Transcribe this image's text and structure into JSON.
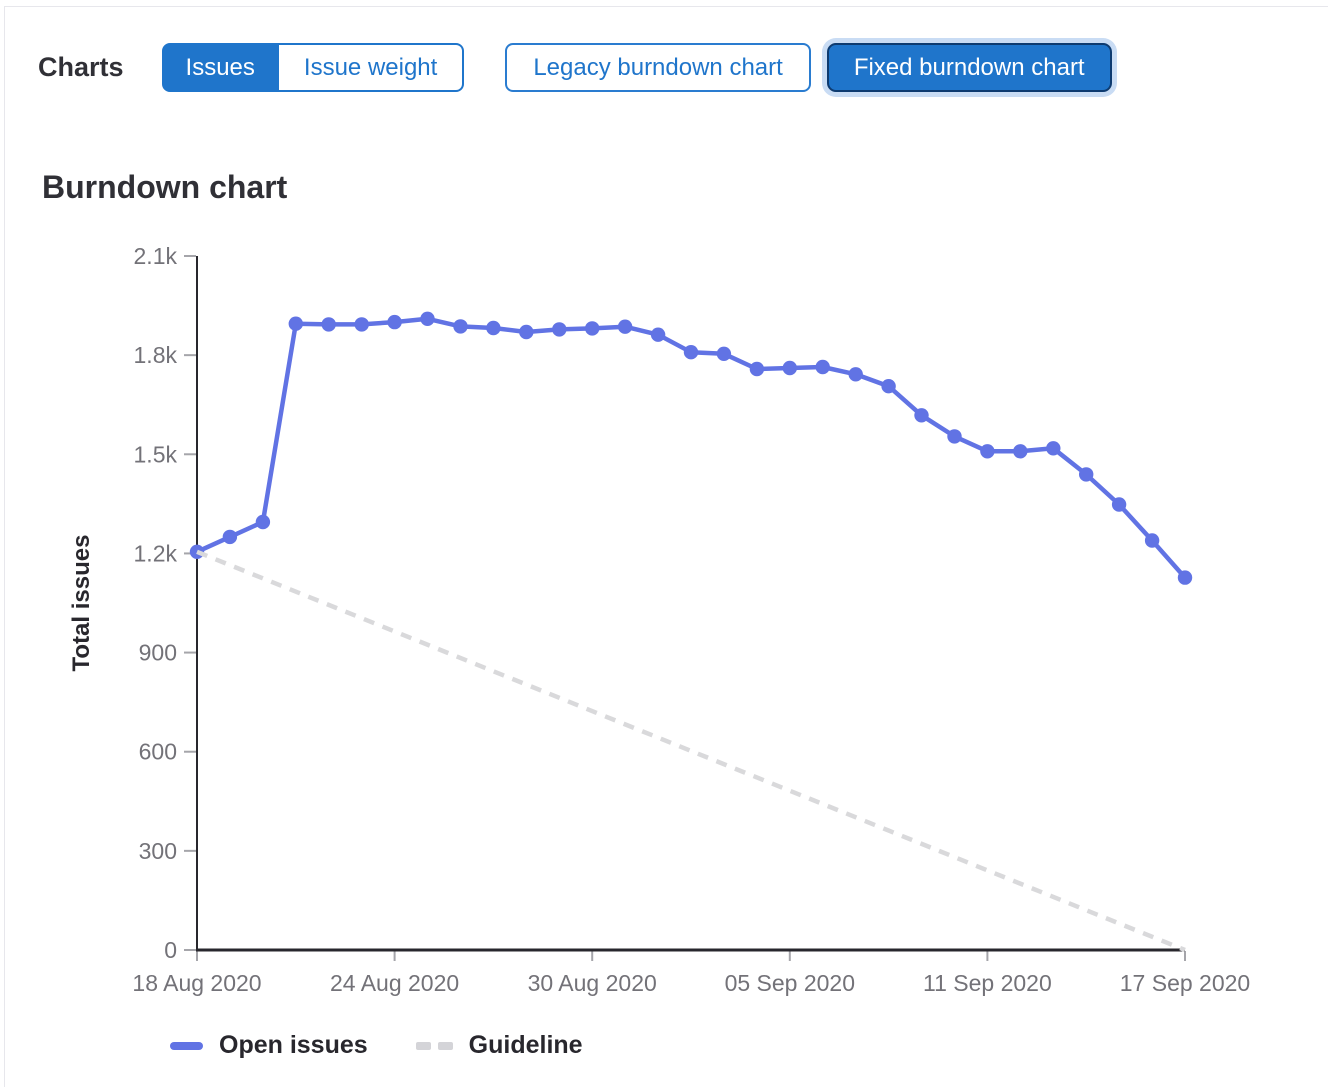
{
  "header": {
    "charts_label": "Charts"
  },
  "toggles": {
    "metric": [
      {
        "label": "Issues",
        "selected": true
      },
      {
        "label": "Issue weight",
        "selected": false
      }
    ],
    "chart_type": [
      {
        "label": "Legacy burndown chart",
        "selected": false
      },
      {
        "label": "Fixed burndown chart",
        "selected": true
      }
    ]
  },
  "section": {
    "title": "Burndown chart"
  },
  "chart_data": {
    "type": "line",
    "title": "Burndown chart",
    "xlabel": "",
    "ylabel": "Total issues",
    "ylim": [
      0,
      2100
    ],
    "grid": false,
    "legend_position": "bottom",
    "x_dates": [
      "18 Aug 2020",
      "19 Aug 2020",
      "20 Aug 2020",
      "21 Aug 2020",
      "22 Aug 2020",
      "23 Aug 2020",
      "24 Aug 2020",
      "25 Aug 2020",
      "26 Aug 2020",
      "27 Aug 2020",
      "28 Aug 2020",
      "29 Aug 2020",
      "30 Aug 2020",
      "31 Aug 2020",
      "01 Sep 2020",
      "02 Sep 2020",
      "03 Sep 2020",
      "04 Sep 2020",
      "05 Sep 2020",
      "06 Sep 2020",
      "07 Sep 2020",
      "08 Sep 2020",
      "09 Sep 2020",
      "10 Sep 2020",
      "11 Sep 2020",
      "12 Sep 2020",
      "13 Sep 2020",
      "14 Sep 2020",
      "15 Sep 2020",
      "16 Sep 2020",
      "17 Sep 2020"
    ],
    "y_ticks": [
      {
        "value": 0,
        "label": "0"
      },
      {
        "value": 300,
        "label": "300"
      },
      {
        "value": 600,
        "label": "600"
      },
      {
        "value": 900,
        "label": "900"
      },
      {
        "value": 1200,
        "label": "1.2k"
      },
      {
        "value": 1500,
        "label": "1.5k"
      },
      {
        "value": 1800,
        "label": "1.8k"
      },
      {
        "value": 2100,
        "label": "2.1k"
      }
    ],
    "x_ticks": [
      {
        "day": 0,
        "label": "18 Aug 2020"
      },
      {
        "day": 6,
        "label": "24 Aug 2020"
      },
      {
        "day": 12,
        "label": "30 Aug 2020"
      },
      {
        "day": 18,
        "label": "05 Sep 2020"
      },
      {
        "day": 24,
        "label": "11 Sep 2020"
      },
      {
        "day": 30,
        "label": "17 Sep 2020"
      }
    ],
    "series": [
      {
        "name": "Open issues",
        "color": "#6173e4",
        "style": "solid",
        "markers": true,
        "x_days": [
          0,
          1,
          2,
          3,
          4,
          5,
          6,
          7,
          8,
          9,
          10,
          11,
          12,
          13,
          14,
          15,
          16,
          17,
          18,
          19,
          20,
          21,
          22,
          23,
          24,
          25,
          26,
          27,
          28,
          29,
          30
        ],
        "values": [
          1205,
          1250,
          1295,
          1895,
          1893,
          1893,
          1900,
          1910,
          1887,
          1882,
          1870,
          1878,
          1881,
          1886,
          1862,
          1809,
          1804,
          1758,
          1761,
          1764,
          1742,
          1706,
          1618,
          1554,
          1509,
          1509,
          1518,
          1439,
          1348,
          1239,
          1127
        ]
      },
      {
        "name": "Guideline",
        "color": "#d9d9db",
        "style": "dashed",
        "markers": false,
        "x_days": [
          0,
          30
        ],
        "values": [
          1205,
          0
        ]
      }
    ],
    "colors": {
      "axis": "#28272d",
      "tick": "#a5a5aa",
      "tick_label": "#737278",
      "text": "#28272d"
    }
  }
}
